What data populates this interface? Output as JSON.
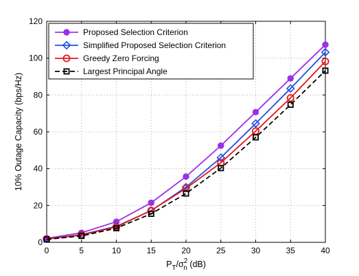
{
  "chart_data": {
    "type": "line",
    "xlabel_main": "P",
    "xlabel_sub1": "T",
    "xlabel_mid": "/σ",
    "xlabel_sub2": "n",
    "xlabel_sup": "2",
    "xlabel_unit": " (dB)",
    "ylabel": "10% Outage Capacity (bps/Hz)",
    "xlim": [
      0,
      40
    ],
    "ylim": [
      0,
      120
    ],
    "xticks": [
      "0",
      "5",
      "10",
      "15",
      "20",
      "25",
      "30",
      "35",
      "40"
    ],
    "yticks": [
      "0",
      "20",
      "40",
      "60",
      "80",
      "100",
      "120"
    ],
    "grid": true,
    "legend_position": "top-left",
    "x": [
      0,
      5,
      10,
      15,
      20,
      25,
      30,
      35,
      40
    ],
    "series": [
      {
        "name": "Proposed Selection Criterion",
        "color": "#9b30e6",
        "marker": "filled-circle",
        "dash": "solid",
        "values": [
          2.2,
          5.2,
          11.2,
          21.5,
          35.7,
          52.5,
          70.7,
          89.0,
          107.3
        ]
      },
      {
        "name": "Simplified Proposed Selection Criterion",
        "color": "#1f4fe6",
        "marker": "open-diamond",
        "dash": "solid",
        "values": [
          1.9,
          4.2,
          8.7,
          17.2,
          30.0,
          46.0,
          64.5,
          83.5,
          103.2
        ]
      },
      {
        "name": "Greedy Zero Forcing",
        "color": "#e6161a",
        "marker": "open-circle",
        "dash": "solid",
        "values": [
          1.8,
          4.0,
          8.4,
          17.3,
          29.3,
          43.2,
          60.4,
          78.4,
          98.2
        ]
      },
      {
        "name": "Largest Principal Angle",
        "color": "#000000",
        "marker": "open-square",
        "dash": "dashed",
        "values": [
          1.6,
          3.5,
          7.7,
          15.5,
          26.5,
          40.3,
          57.0,
          74.7,
          93.2
        ]
      }
    ]
  }
}
